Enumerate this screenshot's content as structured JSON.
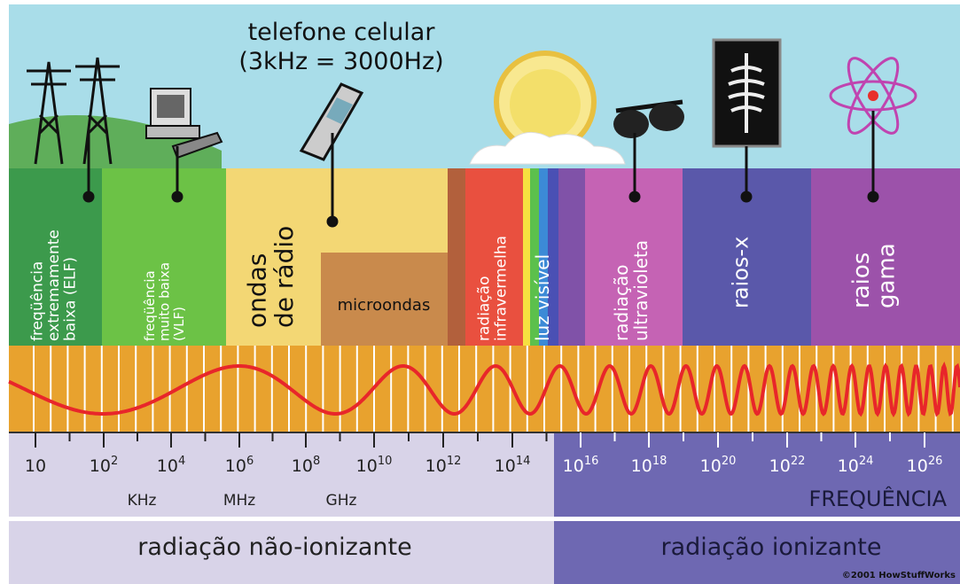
{
  "phone_label": {
    "line1": "telefone celular",
    "line2": "(3kHz = 3000Hz)"
  },
  "bands": [
    {
      "lines": [
        "freqüência",
        "extremamente",
        "baixa (ELF)"
      ]
    },
    {
      "lines": [
        "freqüência",
        "muito baixa",
        "(VLF)"
      ]
    },
    {
      "lines": [
        "ondas",
        "de rádio"
      ]
    },
    {
      "lines": [
        "microondas"
      ]
    },
    {
      "lines": [
        "radiação",
        "infravermelha"
      ]
    },
    {
      "lines": [
        "luz visível"
      ]
    },
    {
      "lines": [
        "radiação",
        "ultravioleta"
      ]
    },
    {
      "lines": [
        "raios-x"
      ]
    },
    {
      "lines": [
        "raios",
        "gama"
      ]
    }
  ],
  "axis": {
    "ticks": [
      {
        "base": "10"
      },
      {
        "base": "10",
        "exp": "2"
      },
      {
        "base": "10",
        "exp": "4"
      },
      {
        "base": "10",
        "exp": "6"
      },
      {
        "base": "10",
        "exp": "8"
      },
      {
        "base": "10",
        "exp": "10"
      },
      {
        "base": "10",
        "exp": "12"
      },
      {
        "base": "10",
        "exp": "14"
      },
      {
        "base": "10",
        "exp": "16"
      },
      {
        "base": "10",
        "exp": "18"
      },
      {
        "base": "10",
        "exp": "20"
      },
      {
        "base": "10",
        "exp": "22"
      },
      {
        "base": "10",
        "exp": "24"
      },
      {
        "base": "10",
        "exp": "26"
      }
    ],
    "units": [
      "KHz",
      "MHz",
      "GHz"
    ],
    "title": "FREQUÊNCIA"
  },
  "footer": {
    "non_ionizing": "radiação não-ionizante",
    "ionizing": "radiação ionizante",
    "credit": "©2001 HowStuffWorks"
  }
}
